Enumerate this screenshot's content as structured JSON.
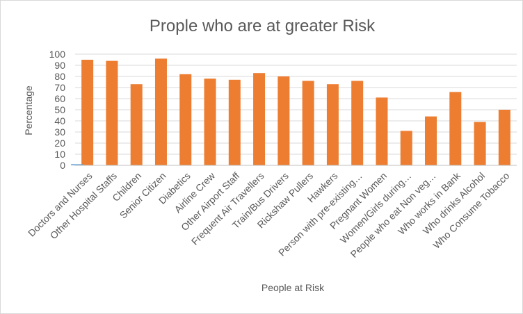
{
  "chart_data": {
    "type": "bar",
    "title": "Prople who are at greater Risk",
    "xlabel": "People at Risk",
    "ylabel": "Percentage",
    "ylim": [
      0,
      100
    ],
    "yticks": [
      "0",
      "10",
      "20",
      "30",
      "40",
      "50",
      "60",
      "70",
      "80",
      "90",
      "100"
    ],
    "grid": true,
    "legend": "none",
    "colors": {
      "bar": "#ED7D31",
      "grid": "#d9d9d9",
      "axis": "#bfbfbf",
      "text": "#595959"
    },
    "categories": [
      "Doctors and Nurses",
      "Other Hospital Staffs",
      "Children",
      "Senior Citizen",
      "Diabetics",
      "Airline Crew",
      "Other Airport Staff",
      "Frequent Air Travellers",
      "Train/Bus Drivers",
      "Rickshaw Pullers",
      "Hawkers",
      "Person with pre-existing…",
      "Pregnant Women",
      "Women/Girls during…",
      "People who eat Non veg…",
      "Who works in Bank",
      "Who drinks Alcohol",
      "Who Consume Tobacco"
    ],
    "values": [
      95,
      94,
      73,
      96,
      82,
      78,
      77,
      83,
      80,
      76,
      73,
      76,
      61,
      31,
      44,
      66,
      39,
      50
    ],
    "secondary_values": [
      1,
      0,
      0,
      0,
      0,
      0,
      0,
      0,
      0,
      0,
      0,
      0,
      0,
      0,
      0,
      0,
      0,
      0
    ],
    "secondary_color": "#5B9BD5"
  }
}
